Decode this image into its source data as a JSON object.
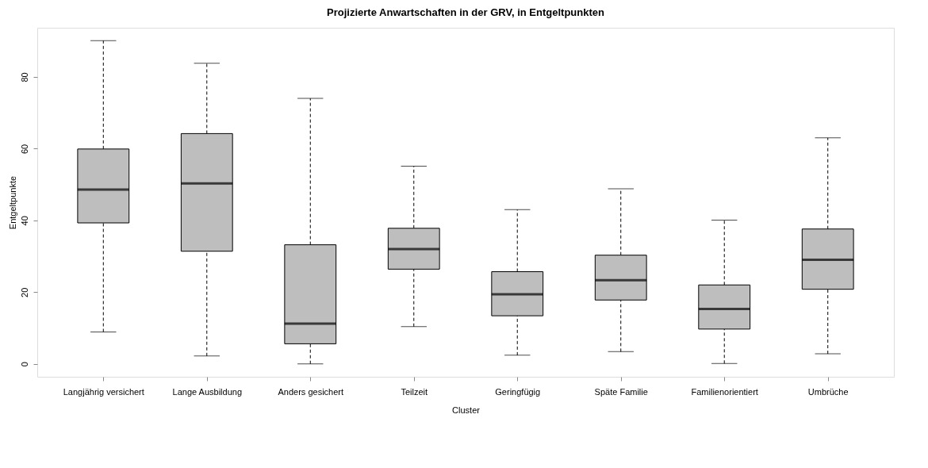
{
  "chart_data": {
    "type": "box",
    "title": "Projizierte Anwartschaften in der GRV, in Entgeltpunkten",
    "xlabel": "Cluster",
    "ylabel": "Entgeltpunkte",
    "categories": [
      "Langjährig versichert",
      "Lange Ausbildung",
      "Anders gesichert",
      "Teilzeit",
      "Geringfügig",
      "Späte Familie",
      "Familienorientiert",
      "Umbrüche"
    ],
    "boxes": [
      {
        "low": 8.9,
        "q1": 39.3,
        "median": 48.6,
        "q3": 59.9,
        "high": 90.1
      },
      {
        "low": 2.2,
        "q1": 31.4,
        "median": 50.3,
        "q3": 64.2,
        "high": 83.8
      },
      {
        "low": 0.0,
        "q1": 5.6,
        "median": 11.2,
        "q3": 33.2,
        "high": 74.0
      },
      {
        "low": 10.4,
        "q1": 26.4,
        "median": 32.0,
        "q3": 37.8,
        "high": 55.1
      },
      {
        "low": 2.4,
        "q1": 13.4,
        "median": 19.4,
        "q3": 25.7,
        "high": 43.0
      },
      {
        "low": 3.4,
        "q1": 17.8,
        "median": 23.3,
        "q3": 30.3,
        "high": 48.8
      },
      {
        "low": 0.1,
        "q1": 9.7,
        "median": 15.3,
        "q3": 22.0,
        "high": 40.1
      },
      {
        "low": 2.8,
        "q1": 20.8,
        "median": 29.0,
        "q3": 37.6,
        "high": 63.0
      }
    ],
    "color": "#bebebe",
    "ylim": [
      -3.6,
      93.7
    ],
    "yticks": [
      0,
      20,
      40,
      60,
      80
    ],
    "grid": false
  }
}
